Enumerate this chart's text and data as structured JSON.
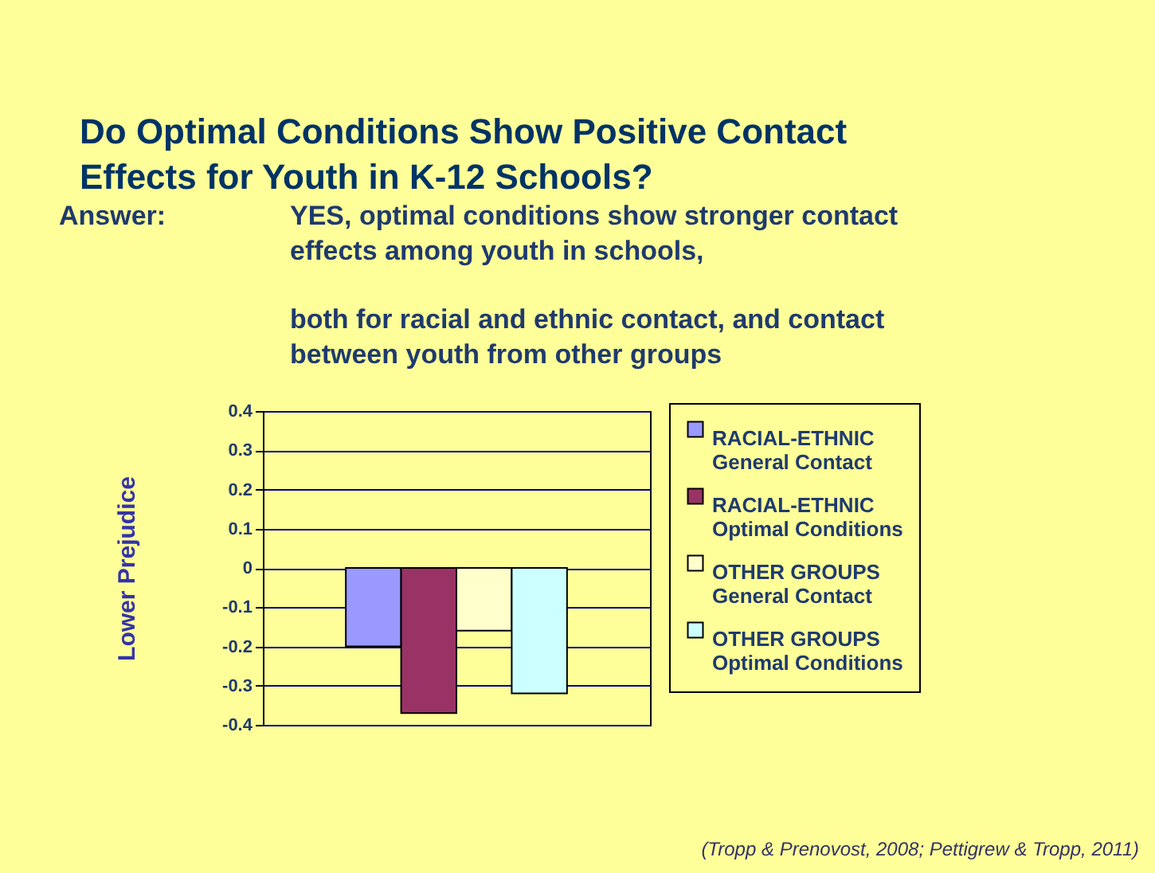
{
  "chart_data": {
    "type": "bar",
    "title": "Do Optimal Conditions Show Positive Contact Effects for Youth in K-12 Schools?",
    "annotations": [
      "Answer:",
      "YES, optimal conditions show stronger contact effects among youth in schools,",
      "both for racial and ethnic contact, and contact between youth from other groups",
      "(Tropp & Prenovost, 2008; Pettigrew & Tropp, 2011)"
    ],
    "ylabel": "Lower Prejudice",
    "categories": [
      null
    ],
    "series": [
      {
        "name": "RACIAL-ETHNIC\nGeneral Contact",
        "color": "#9999ff",
        "values": [
          -0.2
        ]
      },
      {
        "name": "RACIAL-ETHNIC\nOptimal Conditions",
        "color": "#993366",
        "values": [
          -0.37
        ]
      },
      {
        "name": "OTHER GROUPS\nGeneral Contact",
        "color": "#ffffcc",
        "values": [
          -0.16
        ]
      },
      {
        "name": "OTHER GROUPS\nOptimal Conditions",
        "color": "#ccffff",
        "values": [
          -0.32
        ]
      }
    ],
    "ylim": [
      -0.4,
      0.4
    ],
    "yticks": [
      -0.4,
      -0.3,
      -0.2,
      -0.1,
      0,
      0.1,
      0.2,
      0.3,
      0.4
    ],
    "grid": "y",
    "legend": "right",
    "tick_labels": "y"
  }
}
